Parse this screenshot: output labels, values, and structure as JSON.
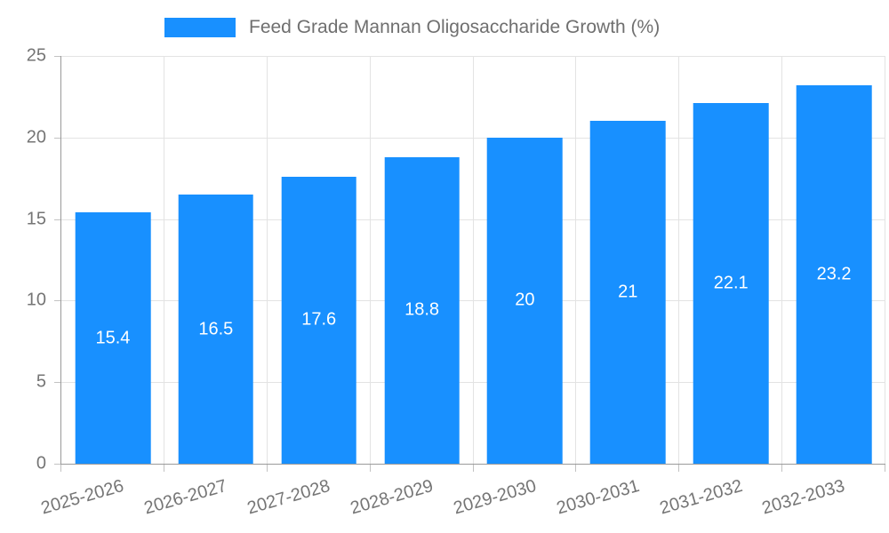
{
  "legend": {
    "label": "Feed Grade Mannan Oligosaccharide Growth (%)",
    "swatch_color": "#1890ff"
  },
  "chart_data": {
    "type": "bar",
    "title": "Feed Grade Mannan Oligosaccharide Growth (%)",
    "series_name": "Feed Grade Mannan Oligosaccharide Growth (%)",
    "categories": [
      "2025-2026",
      "2026-2027",
      "2027-2028",
      "2028-2029",
      "2029-2030",
      "2030-2031",
      "2031-2032",
      "2032-2033"
    ],
    "values": [
      15.4,
      16.5,
      17.6,
      18.8,
      20,
      21,
      22.1,
      23.2
    ],
    "value_labels": [
      "15.4",
      "16.5",
      "17.6",
      "18.8",
      "20",
      "21",
      "22.1",
      "23.2"
    ],
    "xlabel": "",
    "ylabel": "",
    "ylim": [
      0,
      25
    ],
    "yticks": [
      0,
      5,
      10,
      15,
      20,
      25
    ],
    "grid": true,
    "legend_position": "top",
    "bar_color": "#1890ff",
    "value_label_color": "#ffffff",
    "axis_text_color": "#757575",
    "grid_color": "#e3e3e3",
    "axis_line_color": "#9a9a9a",
    "tick_color": "#c2c2c2"
  }
}
